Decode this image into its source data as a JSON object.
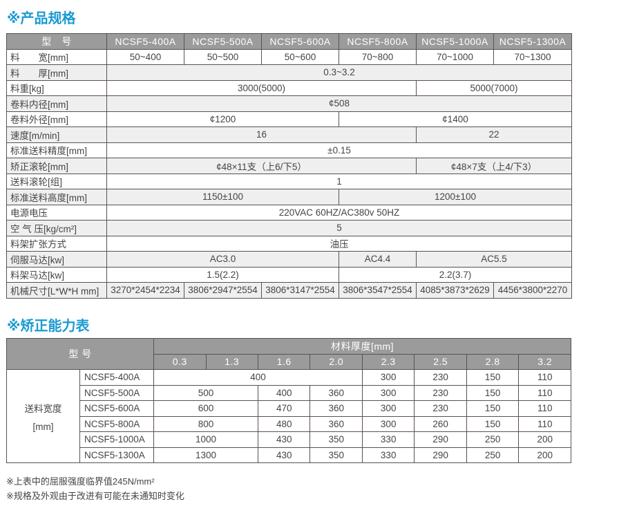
{
  "colors": {
    "title": "#1b9ad2",
    "header_bg": "#9b9b9b",
    "alt_row": "#efefef",
    "border": "#5a5050"
  },
  "spec": {
    "title": "※产品规格",
    "header": [
      "型　号",
      "NCSF5-400A",
      "NCSF5-500A",
      "NCSF5-600A",
      "NCSF5-800A",
      "NCSF5-1000A",
      "NCSF5-1300A"
    ],
    "rows": [
      {
        "label": "料　　宽[mm]",
        "cells": [
          [
            "50~400",
            1
          ],
          [
            "50~500",
            1
          ],
          [
            "50~600",
            1
          ],
          [
            "70~800",
            1
          ],
          [
            "70~1000",
            1
          ],
          [
            "70~1300",
            1
          ]
        ]
      },
      {
        "label": "料　　厚[mm]",
        "cells": [
          [
            "0.3~3.2",
            6
          ]
        ]
      },
      {
        "label": "料重[kg]",
        "cells": [
          [
            "3000(5000)",
            4
          ],
          [
            "5000(7000)",
            2
          ]
        ]
      },
      {
        "label": "卷料内径[mm]",
        "cells": [
          [
            "¢508",
            6
          ]
        ]
      },
      {
        "label": "卷料外径[mm]",
        "cells": [
          [
            "¢1200",
            3
          ],
          [
            "¢1400",
            3
          ]
        ]
      },
      {
        "label": "速度[m/min]",
        "cells": [
          [
            "16",
            4
          ],
          [
            "22",
            2
          ]
        ]
      },
      {
        "label": "标准送料精度[mm]",
        "cells": [
          [
            "±0.15",
            6
          ]
        ]
      },
      {
        "label": "矫正滚轮[mm]",
        "cells": [
          [
            "¢48×11支（上6/下5）",
            4
          ],
          [
            "¢48×7支（上4/下3）",
            2
          ]
        ]
      },
      {
        "label": "送料滚轮[组]",
        "cells": [
          [
            "1",
            6
          ]
        ]
      },
      {
        "label": "标准送料高度[mm]",
        "cells": [
          [
            "1150±100",
            3
          ],
          [
            "1200±100",
            3
          ]
        ]
      },
      {
        "label": "电源电压",
        "cells": [
          [
            "220VAC 60HZ/AC380v 50HZ",
            6
          ]
        ]
      },
      {
        "label": "空 气 压[kg/cm²]",
        "cells": [
          [
            "5",
            6
          ]
        ]
      },
      {
        "label": "料架扩张方式",
        "cells": [
          [
            "油压",
            6
          ]
        ]
      },
      {
        "label": "伺服马达[kw]",
        "cells": [
          [
            "AC3.0",
            3
          ],
          [
            "AC4.4",
            1
          ],
          [
            "AC5.5",
            2
          ]
        ]
      },
      {
        "label": "料架马达[kw]",
        "cells": [
          [
            "1.5(2.2)",
            3
          ],
          [
            "2.2(3.7)",
            3
          ]
        ]
      },
      {
        "label": "机械尺寸[L*W*H mm]",
        "cells": [
          [
            "3270*2454*2234",
            1
          ],
          [
            "3806*2947*2554",
            1
          ],
          [
            "3806*3147*2554",
            1
          ],
          [
            "3806*3547*2554",
            1
          ],
          [
            "4085*3873*2629",
            1
          ],
          [
            "4456*3800*2270",
            1
          ]
        ]
      }
    ]
  },
  "capacity": {
    "title": "※矫正能力表",
    "model_header": "型 号",
    "thickness_header": "材料厚度[mm]",
    "thicknesses": [
      "0.3",
      "1.3",
      "1.6",
      "2.0",
      "2.3",
      "2.5",
      "2.8",
      "3.2"
    ],
    "side_label_1": "送料宽度",
    "side_label_2": "[mm]",
    "rows": [
      {
        "model": "NCSF5-400A",
        "cells": [
          [
            "400",
            4
          ],
          [
            "300",
            1
          ],
          [
            "230",
            1
          ],
          [
            "150",
            1
          ],
          [
            "110",
            1
          ]
        ]
      },
      {
        "model": "NCSF5-500A",
        "cells": [
          [
            "500",
            2
          ],
          [
            "400",
            1
          ],
          [
            "360",
            1
          ],
          [
            "300",
            1
          ],
          [
            "230",
            1
          ],
          [
            "150",
            1
          ],
          [
            "110",
            1
          ]
        ]
      },
      {
        "model": "NCSF5-600A",
        "cells": [
          [
            "600",
            2
          ],
          [
            "470",
            1
          ],
          [
            "360",
            1
          ],
          [
            "300",
            1
          ],
          [
            "230",
            1
          ],
          [
            "150",
            1
          ],
          [
            "110",
            1
          ]
        ]
      },
      {
        "model": "NCSF5-800A",
        "cells": [
          [
            "800",
            2
          ],
          [
            "480",
            1
          ],
          [
            "360",
            1
          ],
          [
            "300",
            1
          ],
          [
            "260",
            1
          ],
          [
            "150",
            1
          ],
          [
            "110",
            1
          ]
        ]
      },
      {
        "model": "NCSF5-1000A",
        "cells": [
          [
            "1000",
            2
          ],
          [
            "430",
            1
          ],
          [
            "350",
            1
          ],
          [
            "330",
            1
          ],
          [
            "290",
            1
          ],
          [
            "250",
            1
          ],
          [
            "200",
            1
          ]
        ]
      },
      {
        "model": "NCSF5-1300A",
        "cells": [
          [
            "1300",
            2
          ],
          [
            "430",
            1
          ],
          [
            "350",
            1
          ],
          [
            "330",
            1
          ],
          [
            "290",
            1
          ],
          [
            "250",
            1
          ],
          [
            "200",
            1
          ]
        ]
      }
    ]
  },
  "notes": [
    "※上表中的屈服强度临界值245N/mm²",
    "※规格及外观由于改进有可能在未通知时变化"
  ]
}
